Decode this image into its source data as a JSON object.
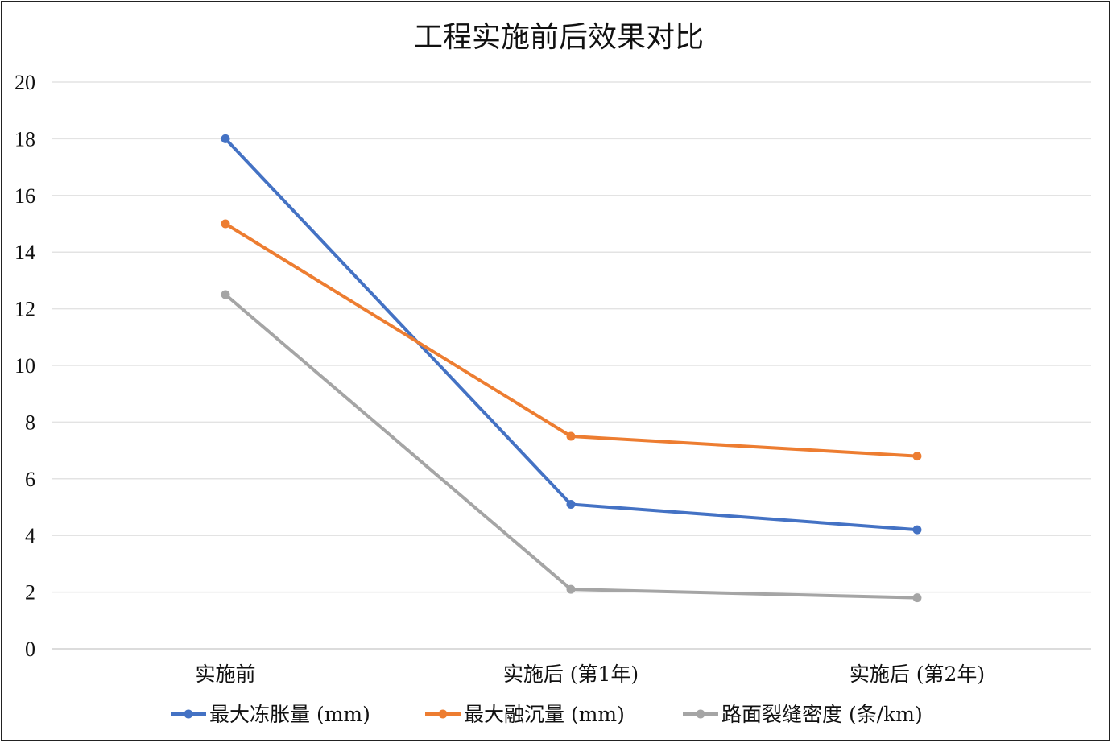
{
  "chart_data": {
    "type": "line",
    "title": "工程实施前后效果对比",
    "categories": [
      "实施前",
      "实施后 (第1年)",
      "实施后 (第2年)"
    ],
    "ylim": [
      0,
      20
    ],
    "yticks": [
      "0",
      "2",
      "4",
      "6",
      "8",
      "10",
      "12",
      "14",
      "16",
      "18",
      "20"
    ],
    "grid": true,
    "legend_position": "bottom",
    "series": [
      {
        "name": "最大冻胀量 (mm)",
        "values": [
          18,
          5.1,
          4.2
        ],
        "color": "#4472C4"
      },
      {
        "name": "最大融沉量 (mm)",
        "values": [
          15,
          7.5,
          6.8
        ],
        "color": "#ED7D31"
      },
      {
        "name": "路面裂缝密度 (条/km)",
        "values": [
          12.5,
          2.1,
          1.8
        ],
        "color": "#A5A5A5"
      }
    ]
  }
}
